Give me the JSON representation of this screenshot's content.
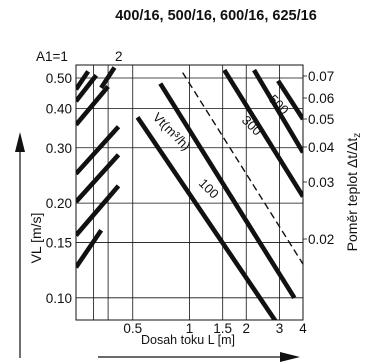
{
  "chart_data": {
    "type": "line",
    "title": "400/16, 500/16, 600/16, 625/16",
    "x_axis": {
      "label": "Dosah toku L [m]",
      "scale": "log",
      "tick_labels": [
        "0.5",
        "1",
        "1.5",
        "2",
        "3",
        "4"
      ],
      "range": [
        0.25,
        4
      ]
    },
    "y_axis_left": {
      "label": "VL [m/s]",
      "scale": "log",
      "tick_labels": [
        "0.10",
        "0.15",
        "0.20",
        "0.30",
        "0.40",
        "0.50"
      ],
      "range": [
        0.085,
        0.55
      ]
    },
    "y_axis_right": {
      "label": "Poměr teplot Δt/Δtz",
      "tick_labels": [
        "0.02",
        "0.03",
        "0.04",
        "0.05",
        "0.06",
        "0.07"
      ]
    },
    "grid": true,
    "top_labels": [
      "A1=1",
      "2"
    ],
    "series": [
      {
        "family": "A1",
        "style": "thick",
        "points": [
          [
            0.25,
            0.125
          ],
          [
            0.34,
            0.164
          ]
        ]
      },
      {
        "family": "A1",
        "style": "thick",
        "points": [
          [
            0.25,
            0.158
          ],
          [
            0.42,
            0.227
          ]
        ]
      },
      {
        "family": "A1",
        "style": "thick",
        "points": [
          [
            0.25,
            0.202
          ],
          [
            0.42,
            0.285
          ]
        ]
      },
      {
        "family": "A1",
        "style": "thick",
        "points": [
          [
            0.25,
            0.248
          ],
          [
            0.42,
            0.35
          ]
        ]
      },
      {
        "family": "A1",
        "style": "thick",
        "points": [
          [
            0.25,
            0.355
          ],
          [
            0.37,
            0.47
          ]
        ]
      },
      {
        "family": "A1",
        "style": "thick",
        "points": [
          [
            0.25,
            0.422
          ],
          [
            0.32,
            0.51
          ]
        ]
      },
      {
        "family": "A1",
        "style": "thick",
        "points": [
          [
            0.25,
            0.46
          ],
          [
            0.29,
            0.525
          ]
        ]
      },
      {
        "family": "A1",
        "style": "thick",
        "points": [
          [
            0.34,
            0.465
          ],
          [
            0.4,
            0.54
          ]
        ]
      },
      {
        "family": "Vt",
        "name": "100",
        "style": "thick",
        "points": [
          [
            0.53,
            0.375
          ],
          [
            3.08,
            0.079
          ]
        ]
      },
      {
        "family": "Vt",
        "style": "thick",
        "points": [
          [
            0.7,
            0.48
          ],
          [
            3.6,
            0.1
          ]
        ]
      },
      {
        "family": "Vt",
        "style": "dashed",
        "points": [
          [
            0.92,
            0.52
          ],
          [
            4.0,
            0.128
          ]
        ]
      },
      {
        "family": "Vt",
        "name": "300",
        "style": "thick",
        "points": [
          [
            1.53,
            0.53
          ],
          [
            4.0,
            0.21
          ]
        ]
      },
      {
        "family": "Vt",
        "style": "thick",
        "points": [
          [
            2.2,
            0.53
          ],
          [
            4.0,
            0.29
          ]
        ]
      },
      {
        "family": "Vt",
        "name": "500",
        "style": "thick",
        "points": [
          [
            2.95,
            0.49
          ],
          [
            4.0,
            0.37
          ]
        ]
      }
    ],
    "annotations": [
      {
        "text": "Vt(m³/h)",
        "target_series": "Vt"
      },
      {
        "text": "100"
      },
      {
        "text": "300"
      },
      {
        "text": "500"
      }
    ]
  }
}
